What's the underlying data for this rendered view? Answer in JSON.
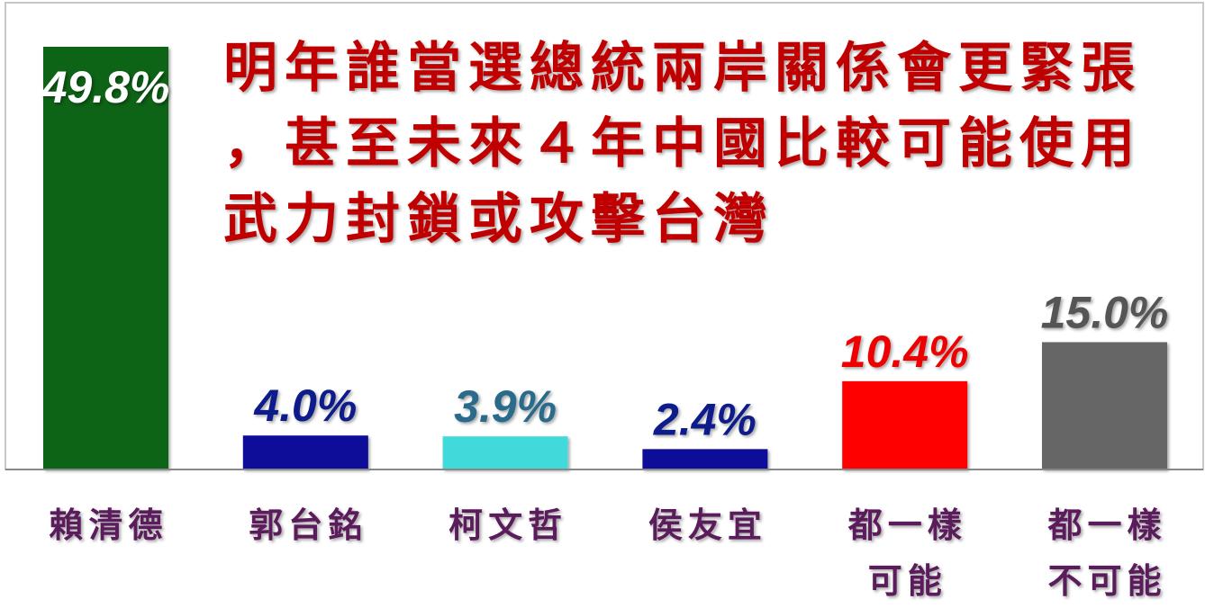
{
  "chart_data": {
    "type": "bar",
    "title_lines": [
      "明年誰當選總統兩岸關係會更緊張",
      "，甚至未來４年中國比較可能使用",
      "武力封鎖或攻擊台灣"
    ],
    "categories": [
      [
        "賴清德"
      ],
      [
        "郭台銘"
      ],
      [
        "柯文哲"
      ],
      [
        "侯友宜"
      ],
      [
        "都一樣",
        "可能"
      ],
      [
        "都一樣",
        "不可能"
      ]
    ],
    "values": [
      49.8,
      4.0,
      3.9,
      2.4,
      10.4,
      15.0
    ],
    "value_labels": [
      "49.8%",
      "4.0%",
      "3.9%",
      "2.4%",
      "10.4%",
      "15.0%"
    ],
    "bar_colors": [
      "#0a6414",
      "#0a0a9a",
      "#40dada",
      "#0a0a9a",
      "#ff0000",
      "#666666"
    ],
    "label_colors": [
      "#ffffff",
      "#0a1a8a",
      "#2a6a8a",
      "#0a1a8a",
      "#ee0000",
      "#555555"
    ],
    "ylim": [
      0,
      50
    ],
    "grid": false,
    "legend": "none"
  }
}
